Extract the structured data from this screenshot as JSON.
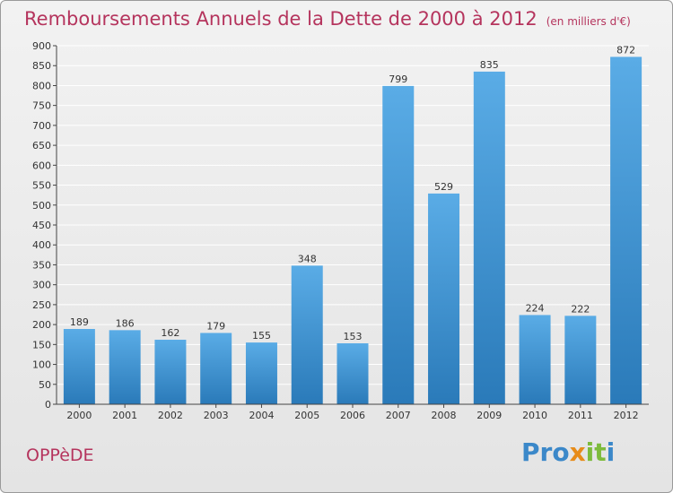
{
  "header": {
    "title": "Remboursements Annuels de la Dette de 2000 à 2012",
    "subtitle": "(en milliers d'€)"
  },
  "footer": {
    "commune": "OPPèDE",
    "logo_part1": "Pro",
    "logo_part2": "x",
    "logo_part3": "it",
    "logo_part4": "i"
  },
  "colors": {
    "bar_top": "#5aace6",
    "bar_bottom": "#2a7ab9",
    "title": "#b5345d",
    "grid": "#ffffff"
  },
  "chart_data": {
    "type": "bar",
    "title": "Remboursements Annuels de la Dette de 2000 à 2012",
    "subtitle": "(en milliers d'€)",
    "categories": [
      "2000",
      "2001",
      "2002",
      "2003",
      "2004",
      "2005",
      "2006",
      "2007",
      "2008",
      "2009",
      "2010",
      "2011",
      "2012"
    ],
    "values": [
      189,
      186,
      162,
      179,
      155,
      348,
      153,
      799,
      529,
      835,
      224,
      222,
      872
    ],
    "ylim": [
      0,
      900
    ],
    "yticks": [
      0,
      50,
      100,
      150,
      200,
      250,
      300,
      350,
      400,
      450,
      500,
      550,
      600,
      650,
      700,
      750,
      800,
      850,
      900
    ],
    "grid": true,
    "legend": "none"
  }
}
